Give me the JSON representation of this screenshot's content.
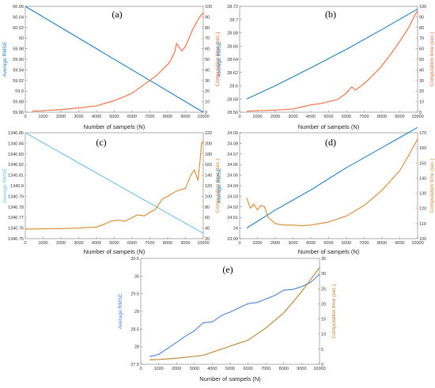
{
  "colors": {
    "rmse": "#1f7fc4",
    "rmse_light": "#6ec1ea",
    "rmse_e": "#4a7fe0",
    "time": "#f2683a",
    "time_c": "#d9892e",
    "time_e": "#b8852c",
    "frame": "#777777"
  },
  "chart_data": [
    {
      "id": "a",
      "label": "(a)",
      "type": "line",
      "xlabel": "Number of sampels  (N)",
      "ylabel_left": "Average RMSE",
      "ylabel_right": "Computation time (sec.)",
      "xlim": [
        0,
        10000
      ],
      "xticks": [
        0,
        1000,
        2000,
        3000,
        4000,
        5000,
        6000,
        7000,
        8000,
        9000,
        10000
      ],
      "ylim_left": [
        59.86,
        60.06
      ],
      "yticks_left": [
        "59.86",
        "59.88",
        "59.9",
        "59.92",
        "59.94",
        "59.96",
        "59.98",
        "60",
        "60.02",
        "60.04",
        "60.06"
      ],
      "ylim_right": [
        0,
        100
      ],
      "yticks_right": [
        "0",
        "10",
        "20",
        "30",
        "40",
        "50",
        "60",
        "70",
        "80",
        "90",
        "100"
      ],
      "series": [
        {
          "axis": "left",
          "color_key": "rmse",
          "x": [
            0,
            10000
          ],
          "y": [
            60.06,
            59.86
          ]
        },
        {
          "axis": "right",
          "color_key": "time",
          "x": [
            400,
            1000,
            2000,
            3000,
            4000,
            5000,
            5600,
            6000,
            6500,
            7000,
            7400,
            7800,
            8000,
            8200,
            8400,
            8500,
            8700,
            8800,
            9000,
            9200,
            9400,
            9600,
            9800,
            10000
          ],
          "y": [
            1,
            1.5,
            2.5,
            4,
            6,
            11,
            15,
            18,
            24,
            30,
            35,
            42,
            45,
            50,
            57,
            65,
            60,
            58,
            62,
            70,
            78,
            84,
            90,
            94
          ]
        }
      ]
    },
    {
      "id": "b",
      "label": "(b)",
      "type": "line",
      "xlabel": "Number of sampels  (N)",
      "ylabel_left": "Average RMSE",
      "ylabel_right": "Computation time (sec.)",
      "xlim": [
        0,
        10000
      ],
      "xticks": [
        0,
        1000,
        2000,
        3000,
        4000,
        5000,
        6000,
        7000,
        8000,
        9000,
        10000
      ],
      "ylim_left": [
        28.56,
        28.72
      ],
      "yticks_left": [
        "28.56",
        "28.58",
        "28.6",
        "28.62",
        "28.64",
        "28.66",
        "28.68",
        "28.7",
        "28.72"
      ],
      "ylim_right": [
        0,
        100
      ],
      "yticks_right": [
        "0",
        "10",
        "20",
        "30",
        "40",
        "50",
        "60",
        "70",
        "80",
        "90",
        "100"
      ],
      "series": [
        {
          "axis": "left",
          "color_key": "rmse",
          "x": [
            400,
            2000,
            4000,
            6000,
            8000,
            10000
          ],
          "y": [
            28.58,
            28.6,
            28.627,
            28.655,
            28.685,
            28.716
          ]
        },
        {
          "axis": "right",
          "color_key": "time",
          "x": [
            400,
            1000,
            2000,
            3000,
            3500,
            4000,
            4500,
            5000,
            5500,
            6000,
            6300,
            6500,
            7000,
            7500,
            8000,
            8500,
            9000,
            9500,
            9800,
            10000
          ],
          "y": [
            1,
            1.5,
            2,
            3,
            5,
            7,
            8,
            10,
            12,
            18,
            24,
            21,
            27,
            35,
            44,
            55,
            67,
            80,
            90,
            96
          ]
        }
      ]
    },
    {
      "id": "c",
      "label": "(c)",
      "type": "line",
      "xlabel": "Number of sampels  (N)",
      "ylabel_left": "Average RMSE",
      "ylabel_right": "Computation time (sec.)",
      "xlim": [
        0,
        10000
      ],
      "xticks": [
        0,
        1000,
        2000,
        3000,
        4000,
        5000,
        6000,
        7000,
        8000,
        9000,
        10000
      ],
      "ylim_left": [
        1340.75,
        1340.85
      ],
      "yticks_left": [
        "1340.75",
        "1340.76",
        "1340.77",
        "1340.78",
        "1340.79",
        "1340.8",
        "1340.81",
        "1340.82",
        "1340.83",
        "1340.84",
        "1340.85"
      ],
      "ylim_right": [
        20,
        220
      ],
      "yticks_right": [
        "20",
        "40",
        "60",
        "80",
        "100",
        "120",
        "140",
        "160",
        "180",
        "200",
        "220"
      ],
      "series": [
        {
          "axis": "left",
          "color_key": "rmse_light",
          "x": [
            0,
            10000
          ],
          "y": [
            1340.85,
            1340.755
          ]
        },
        {
          "axis": "right",
          "color_key": "time_c",
          "x": [
            0,
            1000,
            2000,
            3000,
            4000,
            4500,
            4800,
            5200,
            5600,
            6000,
            6300,
            6700,
            7000,
            7300,
            7700,
            8000,
            8500,
            9000,
            9300,
            9500,
            9700,
            9800,
            9900,
            10000
          ],
          "y": [
            38,
            38.5,
            39,
            40,
            42,
            48,
            53,
            55,
            53,
            60,
            65,
            63,
            70,
            75,
            95,
            100,
            110,
            115,
            140,
            150,
            130,
            160,
            200,
            205
          ]
        }
      ]
    },
    {
      "id": "d",
      "label": "(d)",
      "type": "line",
      "xlabel": "Number of sampels  (N)",
      "ylabel_left": "Average RMSE",
      "ylabel_right": "Computation time (sec.)",
      "xlim": [
        0,
        10000
      ],
      "xticks": [
        0,
        1000,
        2000,
        3000,
        4000,
        5000,
        6000,
        7000,
        8000,
        9000,
        10000
      ],
      "ylim_left": [
        23.99,
        24.09
      ],
      "yticks_left": [
        "23.99",
        "24",
        "24.01",
        "24.02",
        "24.03",
        "24.04",
        "24.05",
        "24.06",
        "24.07",
        "24.08",
        "24.09"
      ],
      "ylim_right": [
        100,
        170
      ],
      "yticks_right": [
        "100",
        "110",
        "120",
        "130",
        "140",
        "150",
        "160",
        "170"
      ],
      "series": [
        {
          "axis": "left",
          "color_key": "rmse",
          "x": [
            400,
            2000,
            4000,
            6000,
            8000,
            10000
          ],
          "y": [
            24.0,
            24.017,
            24.036,
            24.057,
            24.076,
            24.095
          ]
        },
        {
          "axis": "right",
          "color_key": "time_c",
          "x": [
            400,
            600,
            800,
            1000,
            1200,
            1400,
            1600,
            1800,
            2000,
            2200,
            2500,
            3000,
            3500,
            4000,
            5000,
            6000,
            7000,
            8000,
            9000,
            9500,
            10000
          ],
          "y": [
            127,
            120,
            123,
            119,
            122,
            121,
            114,
            112,
            110,
            109.5,
            109,
            109,
            108.5,
            109,
            111,
            115,
            122,
            132,
            145,
            155,
            166
          ]
        }
      ]
    },
    {
      "id": "e",
      "label": "(e)",
      "type": "line",
      "xlabel": "Number of sampels (N)",
      "ylabel_left": "Average RMSE",
      "ylabel_right": "Computation time (sec.)",
      "xlim": [
        0,
        10000
      ],
      "xticks": [
        0,
        1000,
        2000,
        3000,
        4000,
        5000,
        6000,
        7000,
        8000,
        9000,
        10000
      ],
      "ylim_left": [
        27.5,
        30.5
      ],
      "yticks_left": [
        "27.5",
        "28",
        "28.5",
        "29",
        "29.5",
        "30",
        "30.5"
      ],
      "ylim_right": [
        0,
        35
      ],
      "yticks_right": [
        "0",
        "5",
        "10",
        "15",
        "20",
        "25",
        "30",
        "35"
      ],
      "series": [
        {
          "axis": "left",
          "color_key": "rmse_e",
          "x": [
            500,
            1000,
            1500,
            2000,
            2500,
            3000,
            3500,
            4000,
            4500,
            5000,
            5500,
            6000,
            6500,
            7000,
            7500,
            8000,
            8500,
            9000,
            9500,
            10000
          ],
          "y": [
            27.72,
            27.78,
            27.95,
            28.12,
            28.3,
            28.45,
            28.68,
            28.7,
            28.88,
            28.98,
            29.1,
            29.22,
            29.25,
            29.35,
            29.45,
            29.6,
            29.62,
            29.7,
            29.82,
            30.05
          ]
        },
        {
          "axis": "right",
          "color_key": "time_e",
          "x": [
            500,
            1000,
            2000,
            3000,
            3500,
            4000,
            5000,
            5500,
            6000,
            7000,
            8000,
            9000,
            9500,
            10000
          ],
          "y": [
            1.5,
            1.6,
            2,
            2.6,
            3,
            4,
            6,
            7,
            8,
            12,
            17,
            24,
            28,
            32
          ]
        }
      ]
    }
  ]
}
